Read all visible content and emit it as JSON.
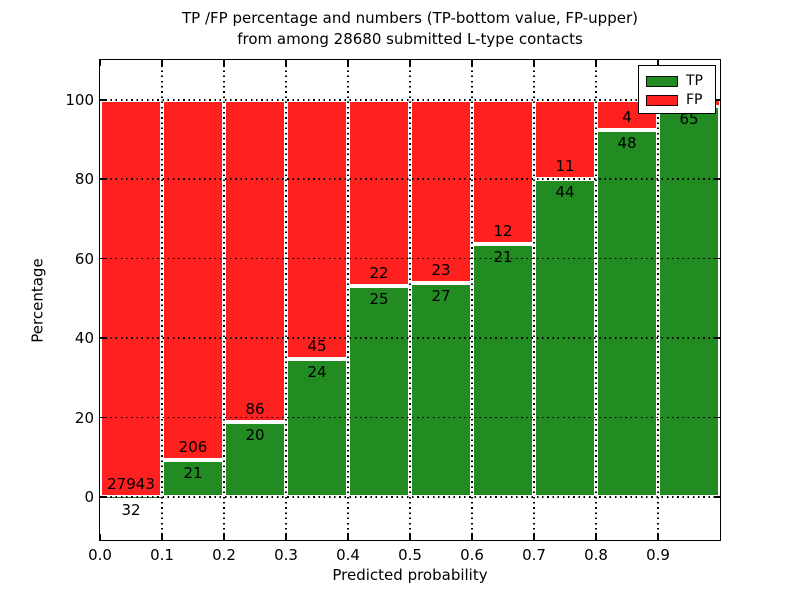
{
  "title": {
    "line1": "TP /FP percentage and numbers (TP-bottom value, FP-upper)",
    "line2": "from among 28680 submitted L-type contacts"
  },
  "axes": {
    "ylabel": "Percentage",
    "xlabel": "Predicted probability"
  },
  "legend": {
    "items": [
      {
        "label": "TP",
        "color": "#228B22"
      },
      {
        "label": "FP",
        "color": "#ff2020"
      }
    ]
  },
  "colors": {
    "tp": "#228B22",
    "fp": "#ff2020",
    "grid": "#000000",
    "background": "#ffffff"
  },
  "chart_data": {
    "type": "bar",
    "stacked": true,
    "normalized_to_percent": true,
    "title": "TP /FP percentage and numbers (TP-bottom value, FP-upper) from among 28680 submitted L-type contacts",
    "xlabel": "Predicted probability",
    "ylabel": "Percentage",
    "total_submitted": 28680,
    "ylim": [
      -10.8,
      110
    ],
    "xlim": [
      0,
      1
    ],
    "yticks": [
      "0",
      "20",
      "40",
      "60",
      "80",
      "100"
    ],
    "ytick_values": [
      0,
      20,
      40,
      60,
      80,
      100
    ],
    "xticks": [
      "0.0",
      "0.1",
      "0.2",
      "0.3",
      "0.4",
      "0.5",
      "0.6",
      "0.7",
      "0.8",
      "0.9"
    ],
    "xtick_values": [
      0.0,
      0.1,
      0.2,
      0.3,
      0.4,
      0.5,
      0.6,
      0.7,
      0.8,
      0.9
    ],
    "grid": true,
    "legend_position": "upper-right",
    "series": [
      {
        "name": "TP",
        "color": "#228B22",
        "counts": [
          32,
          21,
          20,
          24,
          25,
          27,
          21,
          44,
          48,
          65
        ]
      },
      {
        "name": "FP",
        "color": "#ff2020",
        "counts": [
          27943,
          206,
          86,
          45,
          22,
          23,
          12,
          11,
          4,
          1
        ]
      }
    ],
    "bins": [
      {
        "range": "0.0-0.1",
        "tp": 32,
        "fp": 27943,
        "tp_label": "32",
        "fp_label": "27943",
        "fp_label_visible": true
      },
      {
        "range": "0.1-0.2",
        "tp": 21,
        "fp": 206,
        "tp_label": "21",
        "fp_label": "206",
        "fp_label_visible": true
      },
      {
        "range": "0.2-0.3",
        "tp": 20,
        "fp": 86,
        "tp_label": "20",
        "fp_label": "86",
        "fp_label_visible": true
      },
      {
        "range": "0.3-0.4",
        "tp": 24,
        "fp": 45,
        "tp_label": "24",
        "fp_label": "45",
        "fp_label_visible": true
      },
      {
        "range": "0.4-0.5",
        "tp": 25,
        "fp": 22,
        "tp_label": "25",
        "fp_label": "22",
        "fp_label_visible": true
      },
      {
        "range": "0.5-0.6",
        "tp": 27,
        "fp": 23,
        "tp_label": "27",
        "fp_label": "23",
        "fp_label_visible": true
      },
      {
        "range": "0.6-0.7",
        "tp": 21,
        "fp": 12,
        "tp_label": "21",
        "fp_label": "12",
        "fp_label_visible": true
      },
      {
        "range": "0.7-0.8",
        "tp": 44,
        "fp": 11,
        "tp_label": "44",
        "fp_label": "11",
        "fp_label_visible": true
      },
      {
        "range": "0.8-0.9",
        "tp": 48,
        "fp": 4,
        "tp_label": "48",
        "fp_label": "4",
        "fp_label_visible": true
      },
      {
        "range": "0.9-1.0",
        "tp": 65,
        "fp": 1,
        "tp_label": "65",
        "fp_label": "1",
        "fp_label_visible": false
      }
    ]
  }
}
